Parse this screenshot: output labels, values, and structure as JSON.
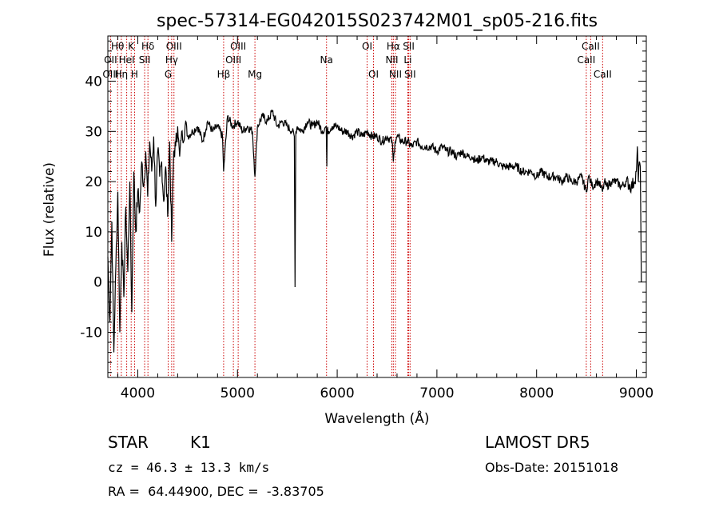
{
  "chart_data": {
    "type": "line",
    "title": "spec-57314-EG042015S023742M01_sp05-216.fits",
    "xlabel": "Wavelength (Å)",
    "ylabel": "Flux (relative)",
    "xlim": [
      3700,
      9100
    ],
    "ylim": [
      -19,
      49
    ],
    "x_ticks": [
      4000,
      5000,
      6000,
      7000,
      8000,
      9000
    ],
    "y_ticks": [
      -10,
      0,
      10,
      20,
      30,
      40
    ],
    "grid": false,
    "legend": "none",
    "line_color": "#000000",
    "marker_line_color": "#cc0000",
    "series": [
      {
        "x": [
          3700,
          3720,
          3740,
          3760,
          3780,
          3800,
          3820,
          3840,
          3860,
          3880,
          3900,
          3920,
          3940,
          3960,
          3980,
          4000,
          4020,
          4040,
          4060,
          4080,
          4100,
          4120,
          4140,
          4160,
          4180,
          4200,
          4220,
          4240,
          4260,
          4280,
          4300,
          4320,
          4340,
          4360,
          4380,
          4400,
          4420,
          4440,
          4460,
          4480,
          4500,
          4550,
          4600,
          4650,
          4700,
          4750,
          4800,
          4850,
          4861,
          4900,
          4950,
          5000,
          5050,
          5100,
          5150,
          5175,
          5200,
          5250,
          5300,
          5350,
          5400,
          5450,
          5500,
          5550,
          5570,
          5577,
          5585,
          5600,
          5650,
          5700,
          5750,
          5800,
          5850,
          5890,
          5896,
          5900,
          5950,
          6000,
          6050,
          6100,
          6150,
          6200,
          6250,
          6300,
          6350,
          6400,
          6450,
          6500,
          6550,
          6563,
          6580,
          6600,
          6650,
          6700,
          6750,
          6800,
          6850,
          6900,
          6950,
          7000,
          7050,
          7100,
          7150,
          7200,
          7250,
          7300,
          7350,
          7400,
          7450,
          7500,
          7550,
          7600,
          7650,
          7700,
          7750,
          7800,
          7850,
          7900,
          7950,
          8000,
          8050,
          8100,
          8150,
          8200,
          8250,
          8300,
          8350,
          8400,
          8450,
          8498,
          8520,
          8542,
          8560,
          8600,
          8620,
          8662,
          8680,
          8700,
          8750,
          8800,
          8850,
          8900,
          8950,
          8980,
          9000,
          9010,
          9020,
          9030,
          9040,
          9050
        ],
        "y": [
          5,
          -8,
          12,
          -14,
          3,
          18,
          -10,
          8,
          -3,
          15,
          2,
          20,
          -6,
          22,
          10,
          18,
          14,
          24,
          19,
          26,
          17,
          28,
          22,
          29,
          15,
          26,
          21,
          24,
          16,
          23,
          13,
          28,
          8,
          26,
          27,
          31,
          25,
          30,
          28,
          32,
          29,
          30,
          31,
          28,
          32,
          30,
          31,
          29,
          22,
          33,
          31,
          32,
          30,
          31,
          30,
          21,
          31,
          33,
          32,
          34,
          31,
          32,
          31,
          30,
          29,
          -1,
          30,
          31,
          30,
          32,
          31,
          32,
          30,
          31,
          23,
          30,
          31,
          31,
          30,
          30,
          29,
          30,
          29,
          30,
          29,
          29,
          28,
          29,
          28,
          24,
          28,
          29,
          28,
          28,
          27,
          28,
          27,
          27,
          27,
          26,
          27,
          26,
          26,
          25,
          26,
          25,
          25,
          24,
          25,
          24,
          24,
          24,
          23,
          23,
          23,
          23,
          22,
          22,
          22,
          21,
          22,
          21,
          21,
          21,
          20,
          21,
          20,
          20,
          21,
          18,
          21,
          20,
          19,
          20,
          20,
          18,
          20,
          19,
          20,
          20,
          19,
          20,
          19,
          20,
          22,
          27,
          20,
          24,
          23,
          0
        ]
      }
    ],
    "line_labels": [
      {
        "label": "Hθ",
        "x": 3798,
        "row": 1
      },
      {
        "label": "K",
        "x": 3934,
        "row": 1
      },
      {
        "label": "Hδ",
        "x": 4102,
        "row": 1
      },
      {
        "label": "OIII",
        "x": 4363,
        "row": 1
      },
      {
        "label": "OIII",
        "x": 5007,
        "row": 1
      },
      {
        "label": "OI",
        "x": 6300,
        "row": 1
      },
      {
        "label": "Hα",
        "x": 6563,
        "row": 1
      },
      {
        "label": "SII",
        "x": 6717,
        "row": 1
      },
      {
        "label": "CaII",
        "x": 8542,
        "row": 1
      },
      {
        "label": "OII",
        "x": 3727,
        "row": 2
      },
      {
        "label": "HeI",
        "x": 3889,
        "row": 2
      },
      {
        "label": "SII",
        "x": 4069,
        "row": 2
      },
      {
        "label": "Hγ",
        "x": 4340,
        "row": 2
      },
      {
        "label": "OIII",
        "x": 4959,
        "row": 2
      },
      {
        "label": "Na",
        "x": 5893,
        "row": 2
      },
      {
        "label": "NII",
        "x": 6548,
        "row": 2
      },
      {
        "label": "Li",
        "x": 6708,
        "row": 2
      },
      {
        "label": "CaII",
        "x": 8498,
        "row": 2
      },
      {
        "label": "OIII",
        "x": 3727,
        "row": 3
      },
      {
        "label": "Hη",
        "x": 3835,
        "row": 3
      },
      {
        "label": "H",
        "x": 3968,
        "row": 3
      },
      {
        "label": "G",
        "x": 4305,
        "row": 3
      },
      {
        "label": "Hβ",
        "x": 4861,
        "row": 3
      },
      {
        "label": "Mg",
        "x": 5175,
        "row": 3
      },
      {
        "label": "OI",
        "x": 6364,
        "row": 3
      },
      {
        "label": "NII",
        "x": 6584,
        "row": 3
      },
      {
        "label": "SII",
        "x": 6731,
        "row": 3
      },
      {
        "label": "CaII",
        "x": 8662,
        "row": 3
      }
    ]
  },
  "info": {
    "class": "STAR",
    "subclass": "K1",
    "survey": "LAMOST DR5",
    "cz": "cz = 46.3 ± 13.3 km/s",
    "obs_date": "Obs-Date: 20151018",
    "coords": "RA =  64.44900, DEC =  -3.83705"
  }
}
